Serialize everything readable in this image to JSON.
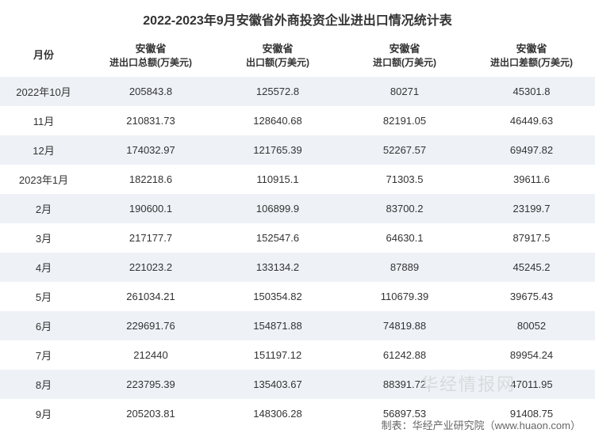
{
  "title": "2022-2023年9月安徽省外商投资企业进出口情况统计表",
  "columns": {
    "month": "月份",
    "c1_top": "安徽省",
    "c1_sub": "进出口总额(万美元)",
    "c2_top": "安徽省",
    "c2_sub": "出口额(万美元)",
    "c3_top": "安徽省",
    "c3_sub": "进口额(万美元)",
    "c4_top": "安徽省",
    "c4_sub": "进出口差额(万美元)"
  },
  "rows": [
    {
      "month": "2022年10月",
      "total": "205843.8",
      "export": "125572.8",
      "import": "80271",
      "diff": "45301.8"
    },
    {
      "month": "11月",
      "total": "210831.73",
      "export": "128640.68",
      "import": "82191.05",
      "diff": "46449.63"
    },
    {
      "month": "12月",
      "total": "174032.97",
      "export": "121765.39",
      "import": "52267.57",
      "diff": "69497.82"
    },
    {
      "month": "2023年1月",
      "total": "182218.6",
      "export": "110915.1",
      "import": "71303.5",
      "diff": "39611.6"
    },
    {
      "month": "2月",
      "total": "190600.1",
      "export": "106899.9",
      "import": "83700.2",
      "diff": "23199.7"
    },
    {
      "month": "3月",
      "total": "217177.7",
      "export": "152547.6",
      "import": "64630.1",
      "diff": "87917.5"
    },
    {
      "month": "4月",
      "total": "221023.2",
      "export": "133134.2",
      "import": "87889",
      "diff": "45245.2"
    },
    {
      "month": "5月",
      "total": "261034.21",
      "export": "150354.82",
      "import": "110679.39",
      "diff": "39675.43"
    },
    {
      "month": "6月",
      "total": "229691.76",
      "export": "154871.88",
      "import": "74819.88",
      "diff": "80052"
    },
    {
      "month": "7月",
      "total": "212440",
      "export": "151197.12",
      "import": "61242.88",
      "diff": "89954.24"
    },
    {
      "month": "8月",
      "total": "223795.39",
      "export": "135403.67",
      "import": "88391.72",
      "diff": "47011.95"
    },
    {
      "month": "9月",
      "total": "205203.81",
      "export": "148306.28",
      "import": "56897.53",
      "diff": "91408.75"
    }
  ],
  "watermark": "华经情报网",
  "footer": "制表：华经产业研究院（www.huaon.com）",
  "style": {
    "odd_row_bg": "#eef2f7",
    "even_row_bg": "#ffffff",
    "text_color": "#333333",
    "footer_color": "#666666",
    "watermark_color": "#d6d6d6",
    "title_fontsize": 16,
    "cell_fontsize": 13
  }
}
